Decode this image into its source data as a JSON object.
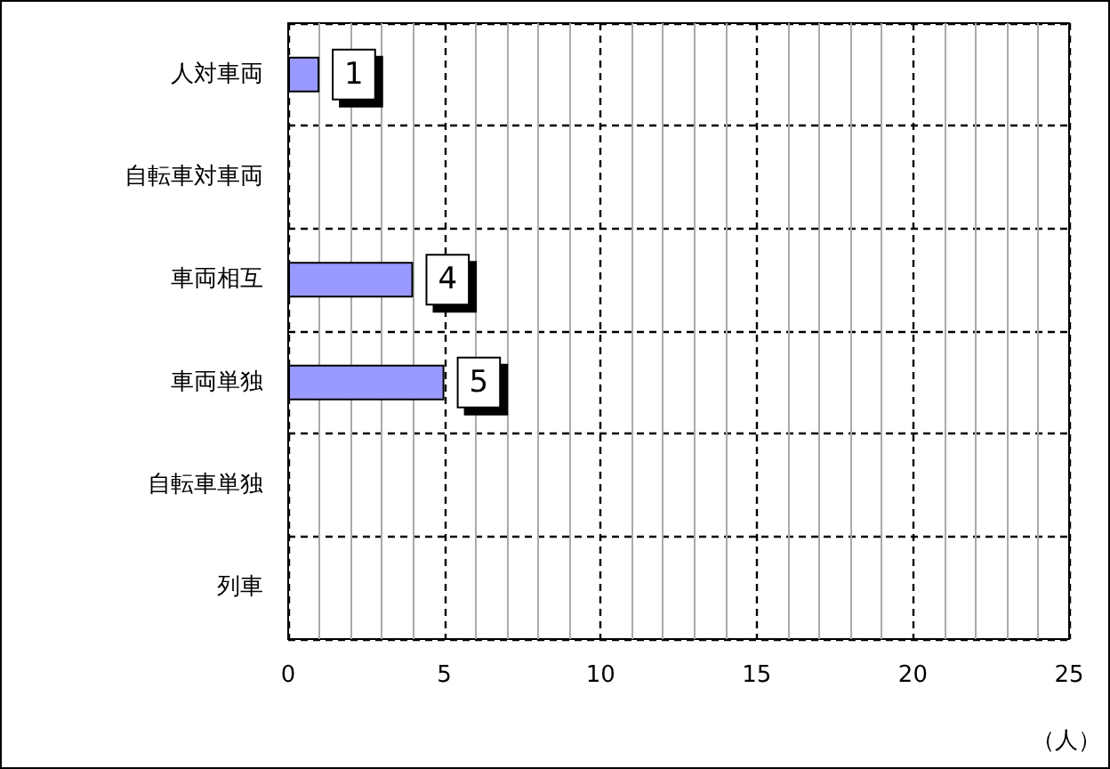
{
  "chart_data": {
    "type": "bar",
    "orientation": "horizontal",
    "categories": [
      "人対車両",
      "自転車対車両",
      "車両相互",
      "車両単独",
      "自転車単独",
      "列車"
    ],
    "values": [
      1,
      0,
      4,
      5,
      0,
      0
    ],
    "color": "#9999ff",
    "value_labels": [
      "1",
      null,
      "4",
      "5",
      null,
      null
    ],
    "xlim": [
      0,
      25
    ],
    "xticks": [
      0,
      5,
      10,
      15,
      20,
      25
    ],
    "xlabel": "（人）",
    "grid": true
  }
}
